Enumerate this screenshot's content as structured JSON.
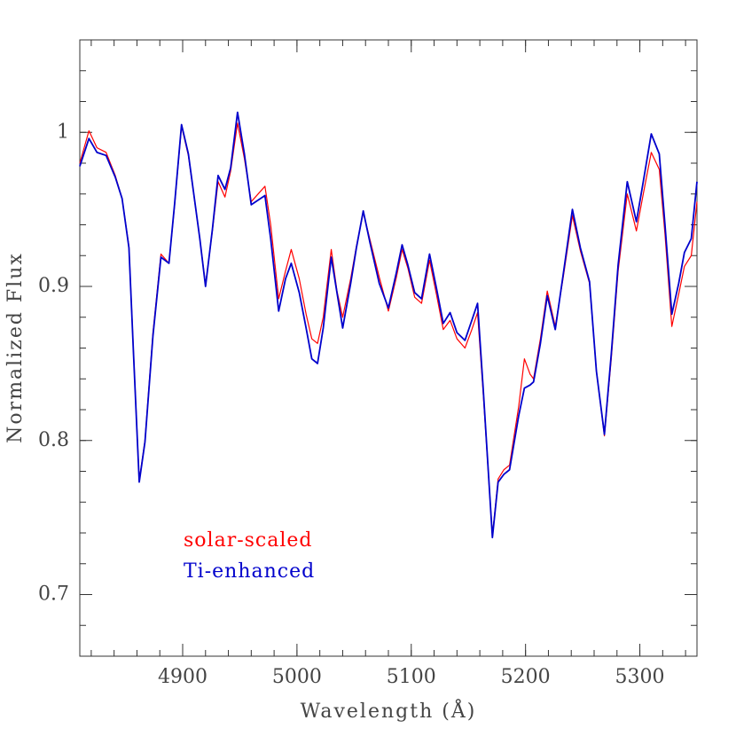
{
  "chart_data": {
    "type": "line",
    "x_label": "Wavelength (Å)",
    "y_label": "Normalized Flux",
    "xlim": [
      4810,
      5350
    ],
    "ylim": [
      0.66,
      1.06
    ],
    "xticks": [
      4900,
      5000,
      5100,
      5200,
      5300
    ],
    "yticks": [
      0.7,
      0.8,
      0.9,
      1
    ],
    "legend_position": "lower left",
    "x": [
      4810,
      4818,
      4825,
      4833,
      4841,
      4847,
      4853,
      4857,
      4862,
      4867,
      4874,
      4881,
      4888,
      4893,
      4899,
      4905,
      4915,
      4920,
      4926,
      4931,
      4937,
      4942,
      4948,
      4954,
      4960,
      4972,
      4977,
      4984,
      4990,
      4995,
      5002,
      5008,
      5013,
      5018,
      5023,
      5030,
      5035,
      5040,
      5047,
      5052,
      5058,
      5064,
      5072,
      5080,
      5087,
      5092,
      5097,
      5103,
      5109,
      5116,
      5122,
      5128,
      5134,
      5140,
      5147,
      5153,
      5158,
      5163,
      5171,
      5176,
      5181,
      5186,
      5194,
      5199,
      5204,
      5207,
      5213,
      5219,
      5226,
      5233,
      5241,
      5248,
      5256,
      5262,
      5269,
      5275,
      5281,
      5289,
      5297,
      5303,
      5310,
      5317,
      5322,
      5328,
      5334,
      5339,
      5345,
      5350
    ],
    "series": [
      {
        "name": "solar-scaled",
        "color": "#ff0000",
        "values": [
          0.98,
          1.001,
          0.99,
          0.987,
          0.972,
          0.957,
          0.926,
          0.857,
          0.774,
          0.8,
          0.87,
          0.921,
          0.915,
          0.953,
          1.004,
          0.985,
          0.931,
          0.901,
          0.936,
          0.968,
          0.958,
          0.975,
          1.006,
          0.983,
          0.955,
          0.965,
          0.94,
          0.892,
          0.91,
          0.924,
          0.905,
          0.882,
          0.866,
          0.863,
          0.88,
          0.924,
          0.897,
          0.88,
          0.905,
          0.926,
          0.948,
          0.93,
          0.906,
          0.884,
          0.906,
          0.924,
          0.912,
          0.893,
          0.889,
          0.917,
          0.895,
          0.872,
          0.878,
          0.866,
          0.86,
          0.872,
          0.883,
          0.83,
          0.738,
          0.775,
          0.781,
          0.784,
          0.822,
          0.853,
          0.843,
          0.84,
          0.866,
          0.897,
          0.874,
          0.906,
          0.946,
          0.923,
          0.902,
          0.845,
          0.803,
          0.853,
          0.91,
          0.96,
          0.936,
          0.96,
          0.987,
          0.976,
          0.934,
          0.874,
          0.895,
          0.913,
          0.92,
          0.955
        ]
      },
      {
        "name": "Ti-enhanced",
        "color": "#0000cc",
        "values": [
          0.978,
          0.996,
          0.987,
          0.985,
          0.971,
          0.957,
          0.925,
          0.856,
          0.773,
          0.799,
          0.868,
          0.919,
          0.915,
          0.954,
          1.005,
          0.986,
          0.931,
          0.9,
          0.937,
          0.972,
          0.963,
          0.977,
          1.013,
          0.986,
          0.953,
          0.959,
          0.931,
          0.884,
          0.905,
          0.915,
          0.896,
          0.873,
          0.853,
          0.85,
          0.873,
          0.919,
          0.896,
          0.873,
          0.902,
          0.925,
          0.949,
          0.928,
          0.902,
          0.886,
          0.909,
          0.927,
          0.914,
          0.896,
          0.892,
          0.921,
          0.899,
          0.876,
          0.883,
          0.87,
          0.865,
          0.878,
          0.889,
          0.833,
          0.737,
          0.773,
          0.778,
          0.781,
          0.816,
          0.834,
          0.836,
          0.838,
          0.863,
          0.894,
          0.872,
          0.908,
          0.95,
          0.925,
          0.903,
          0.845,
          0.804,
          0.856,
          0.914,
          0.968,
          0.942,
          0.968,
          0.999,
          0.986,
          0.94,
          0.882,
          0.902,
          0.922,
          0.931,
          0.968
        ]
      }
    ]
  }
}
